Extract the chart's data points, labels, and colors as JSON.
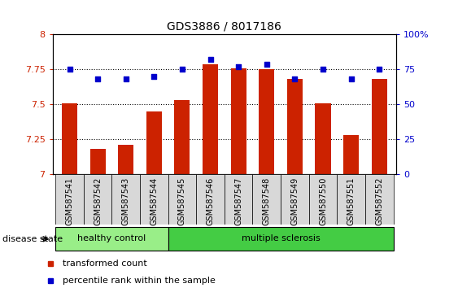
{
  "title": "GDS3886 / 8017186",
  "samples": [
    "GSM587541",
    "GSM587542",
    "GSM587543",
    "GSM587544",
    "GSM587545",
    "GSM587546",
    "GSM587547",
    "GSM587548",
    "GSM587549",
    "GSM587550",
    "GSM587551",
    "GSM587552"
  ],
  "bar_values": [
    7.51,
    7.18,
    7.21,
    7.45,
    7.53,
    7.79,
    7.76,
    7.75,
    7.68,
    7.51,
    7.28,
    7.68
  ],
  "dot_values": [
    75,
    68,
    68,
    70,
    75,
    82,
    77,
    79,
    68,
    75,
    68,
    75
  ],
  "bar_color": "#cc2200",
  "dot_color": "#0000cc",
  "ylim_left": [
    7.0,
    8.0
  ],
  "ylim_right": [
    0,
    100
  ],
  "yticks_left": [
    7.0,
    7.25,
    7.5,
    7.75,
    8.0
  ],
  "ytick_labels_left": [
    "7",
    "7.25",
    "7.5",
    "7.75",
    "8"
  ],
  "yticks_right": [
    0,
    25,
    50,
    75,
    100
  ],
  "ytick_labels_right": [
    "0",
    "25",
    "50",
    "75",
    "100%"
  ],
  "healthy_samples": 4,
  "healthy_label": "healthy control",
  "ms_label": "multiple sclerosis",
  "disease_label": "disease state",
  "legend_bar": "transformed count",
  "legend_dot": "percentile rank within the sample",
  "healthy_color": "#99ee88",
  "ms_color": "#44cc44",
  "bar_bottom": 7.0,
  "grid_yticks": [
    7.25,
    7.5,
    7.75
  ],
  "bar_width": 0.55
}
